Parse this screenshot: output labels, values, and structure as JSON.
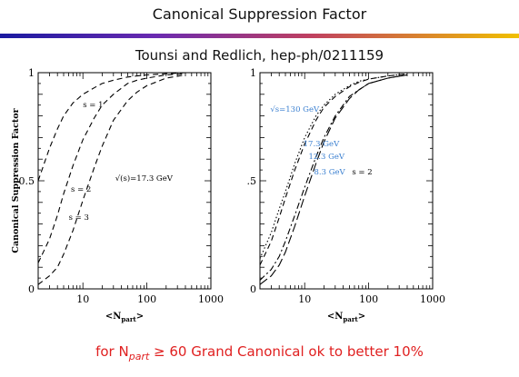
{
  "slide": {
    "title": "Canonical Suppression Factor",
    "subtitle": "Tounsi and Redlich, hep-ph/0211159",
    "footer": {
      "prefix": "for N",
      "subscript": "part",
      "suffix": " ≥ 60 Grand Canonical ok to better 10%"
    },
    "colors": {
      "accent_gradient": [
        "#1a1aa0",
        "#6a2ab0",
        "#c04060",
        "#f0c000"
      ],
      "footer_text": "#e02020",
      "energy_labels": "#3a7fd0"
    }
  },
  "chart_data": [
    {
      "type": "line",
      "xscale": "log",
      "xlim": [
        2,
        1000
      ],
      "ylim": [
        0,
        1
      ],
      "xticks": [
        "10",
        "100",
        "1000"
      ],
      "yticks": [
        "0",
        "0.5",
        "1"
      ],
      "xlabel": "<N",
      "xlabel_sub": "part",
      "xlabel_close": ">",
      "ylabel": "Canonical Suppression Factor",
      "grid": false,
      "series": [
        {
          "name": "s = 1",
          "style": "dashed",
          "x": [
            2,
            3,
            4,
            5,
            7,
            10,
            15,
            20,
            30,
            50,
            70,
            100,
            200,
            400
          ],
          "y": [
            0.5,
            0.65,
            0.74,
            0.8,
            0.86,
            0.9,
            0.93,
            0.95,
            0.965,
            0.98,
            0.985,
            0.99,
            0.995,
            1.0
          ]
        },
        {
          "name": "s = 2",
          "style": "dashed",
          "x": [
            2,
            3,
            4,
            5,
            7,
            10,
            15,
            20,
            30,
            50,
            70,
            100,
            200,
            400
          ],
          "y": [
            0.12,
            0.23,
            0.34,
            0.44,
            0.57,
            0.69,
            0.79,
            0.85,
            0.9,
            0.95,
            0.965,
            0.975,
            0.99,
            0.995
          ]
        },
        {
          "name": "s = 3",
          "style": "dashed",
          "x": [
            2,
            3,
            4,
            5,
            7,
            10,
            15,
            20,
            30,
            50,
            70,
            100,
            200,
            400
          ],
          "y": [
            0.02,
            0.06,
            0.1,
            0.16,
            0.27,
            0.41,
            0.56,
            0.66,
            0.78,
            0.87,
            0.91,
            0.94,
            0.975,
            0.99
          ]
        }
      ],
      "annotations": [
        {
          "text": "s = 1",
          "x": 10,
          "y": 0.84
        },
        {
          "text": "s = 2",
          "x": 6.5,
          "y": 0.45
        },
        {
          "text": "s = 3",
          "x": 6.0,
          "y": 0.32
        },
        {
          "text": "√(s)=17.3 GeV",
          "x": 32,
          "y": 0.5
        }
      ]
    },
    {
      "type": "line",
      "xscale": "log",
      "xlim": [
        2,
        1000
      ],
      "ylim": [
        0,
        1
      ],
      "xticks": [
        "10",
        "100",
        "1000"
      ],
      "yticks": [
        "0",
        "0.5",
        "1"
      ],
      "xlabel": "<N",
      "xlabel_sub": "part",
      "xlabel_close": ">",
      "ylabel": "Canonical Suppression Factor",
      "grid": false,
      "series": [
        {
          "name": "√s=130 GeV",
          "style": "dotted",
          "x": [
            2,
            3,
            4,
            5,
            7,
            10,
            15,
            20,
            30,
            50,
            70,
            100,
            200,
            400
          ],
          "y": [
            0.14,
            0.26,
            0.37,
            0.45,
            0.58,
            0.7,
            0.8,
            0.85,
            0.9,
            0.94,
            0.96,
            0.97,
            0.985,
            0.995
          ]
        },
        {
          "name": "17.3 GeV",
          "style": "dashed",
          "x": [
            2,
            3,
            4,
            5,
            7,
            10,
            15,
            20,
            30,
            50,
            70,
            100,
            200,
            400
          ],
          "y": [
            0.11,
            0.22,
            0.33,
            0.42,
            0.55,
            0.67,
            0.78,
            0.84,
            0.89,
            0.935,
            0.955,
            0.97,
            0.985,
            0.995
          ]
        },
        {
          "name": "12.3 GeV",
          "style": "dash-dot",
          "x": [
            2,
            3,
            4,
            5,
            7,
            10,
            15,
            20,
            30,
            50,
            70,
            100,
            200,
            400
          ],
          "y": [
            0.04,
            0.09,
            0.15,
            0.22,
            0.34,
            0.47,
            0.61,
            0.7,
            0.8,
            0.89,
            0.92,
            0.95,
            0.975,
            0.99
          ]
        },
        {
          "name": "8.3 GeV",
          "style": "long-dash",
          "x": [
            2,
            3,
            4,
            5,
            7,
            10,
            15,
            20,
            30,
            50,
            70,
            100,
            200,
            400
          ],
          "y": [
            0.02,
            0.06,
            0.11,
            0.17,
            0.29,
            0.43,
            0.58,
            0.68,
            0.79,
            0.88,
            0.92,
            0.95,
            0.975,
            0.99
          ]
        }
      ],
      "annotations": [
        {
          "text": "√s=130 GeV",
          "x": 2.9,
          "y": 0.82,
          "color": "#3a7fd0"
        },
        {
          "text": "17.3 GeV",
          "x": 9.5,
          "y": 0.66,
          "color": "#3a7fd0"
        },
        {
          "text": "12.3 GeV",
          "x": 11.5,
          "y": 0.6,
          "color": "#3a7fd0"
        },
        {
          "text": "8.3 GeV",
          "x": 14,
          "y": 0.53,
          "color": "#3a7fd0"
        },
        {
          "text": "s = 2",
          "x": 55,
          "y": 0.53
        }
      ]
    }
  ]
}
